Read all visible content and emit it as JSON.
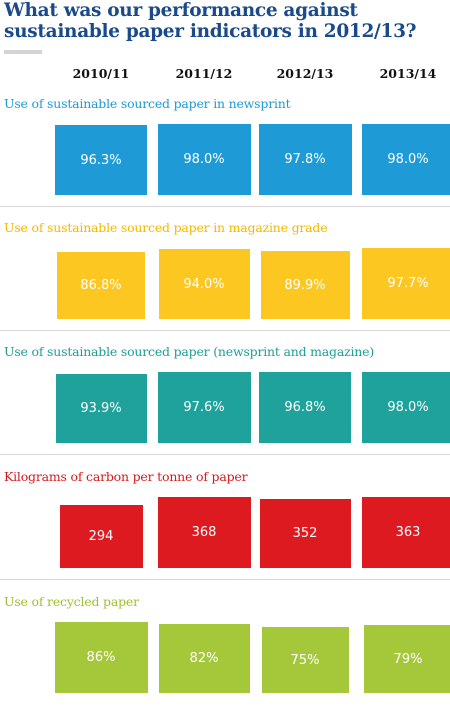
{
  "page": {
    "title": "What was our performance against sustainable paper indicators in 2012/13?"
  },
  "chart_data": {
    "type": "table",
    "categories": [
      "2010/11",
      "2011/12",
      "2012/13",
      "2013/14"
    ],
    "series": [
      {
        "name": "Use of sustainable sourced paper in newsprint",
        "labels": [
          "96.3%",
          "98.0%",
          "97.8%",
          "98.0%"
        ],
        "values": [
          96.3,
          98.0,
          97.8,
          98.0
        ],
        "unit": "%",
        "color": "#1e9bd7",
        "title_color": "#1e9bd7"
      },
      {
        "name": "Use of sustainable sourced paper in magazine grade",
        "labels": [
          "86.8%",
          "94.0%",
          "89.9%",
          "97.7%"
        ],
        "values": [
          86.8,
          94.0,
          89.9,
          97.7
        ],
        "unit": "%",
        "color": "#fcc721",
        "title_color": "#f5b800"
      },
      {
        "name": "Use of sustainable sourced paper (newsprint and magazine)",
        "labels": [
          "93.9%",
          "97.6%",
          "96.8%",
          "98.0%"
        ],
        "values": [
          93.9,
          97.6,
          96.8,
          98.0
        ],
        "unit": "%",
        "color": "#1ea29b",
        "title_color": "#1e9e96"
      },
      {
        "name": "Kilograms of carbon per tonne of paper",
        "labels": [
          "294",
          "368",
          "352",
          "363"
        ],
        "values": [
          294,
          368,
          352,
          363
        ],
        "unit": "kg",
        "color": "#dc1a1f",
        "title_color": "#d41a1f"
      },
      {
        "name": "Use of recycled paper",
        "labels": [
          "86%",
          "82%",
          "75%",
          "79%"
        ],
        "values": [
          86,
          82,
          75,
          79
        ],
        "unit": "%",
        "color": "#a5c83a",
        "title_color": "#9fc02f"
      }
    ]
  }
}
